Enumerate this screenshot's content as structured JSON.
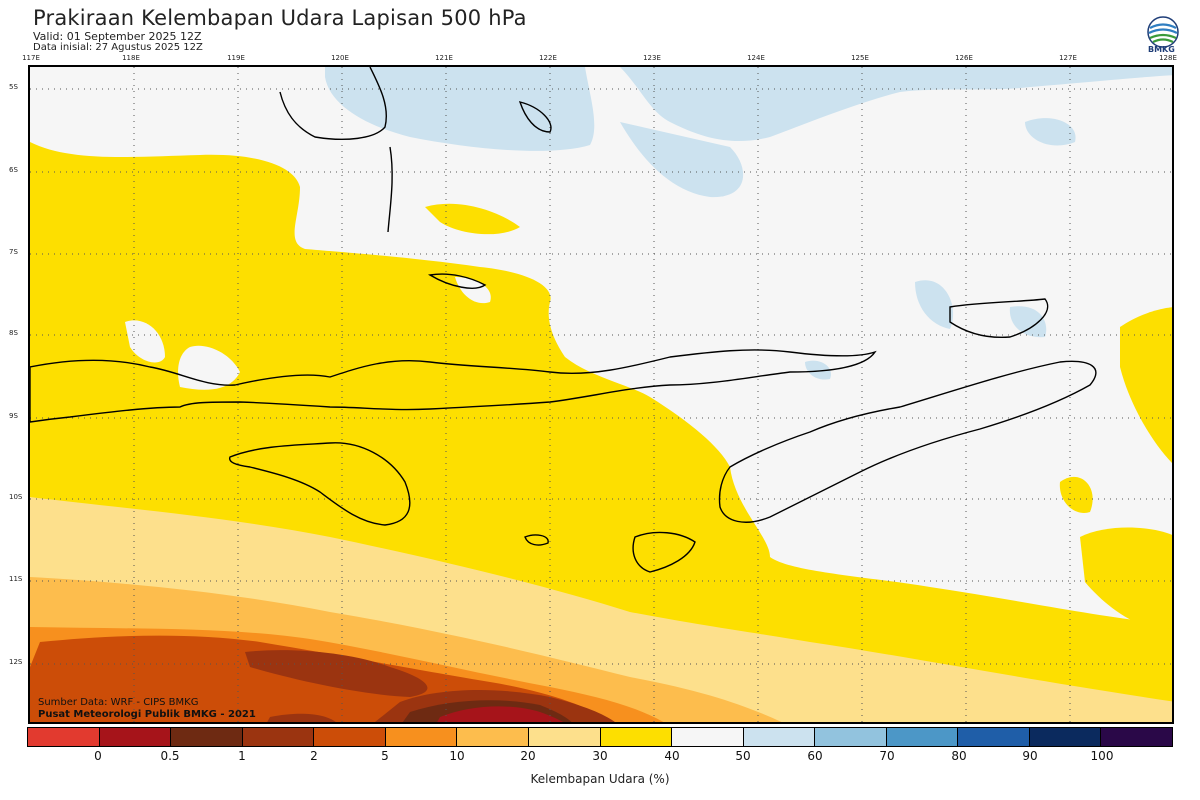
{
  "header": {
    "title": "Prakiraan Kelembapan Udara Lapisan 500 hPa",
    "valid": "Valid: 01 September 2025 12Z",
    "init": "Data inisial: 27 Agustus 2025 12Z"
  },
  "logo": {
    "icon": "bmkg-logo-icon",
    "label": "BMKG"
  },
  "map": {
    "lon_labels": [
      "117E",
      "118E",
      "119E",
      "120E",
      "121E",
      "122E",
      "123E",
      "124E",
      "125E",
      "126E",
      "127E",
      "128E"
    ],
    "lat_labels": [
      "5S",
      "6S",
      "7S",
      "8S",
      "9S",
      "10S",
      "11S",
      "12S"
    ]
  },
  "credits": {
    "source": "Sumber Data: WRF - CIPS BMKG",
    "org": "Pusat Meteorologi Publik BMKG - 2021"
  },
  "colorbar": {
    "colors": [
      "#e23a2f",
      "#a6141a",
      "#6e2a12",
      "#9b3410",
      "#cc4d08",
      "#f7901e",
      "#fdbd4d",
      "#fde08c",
      "#fddf00",
      "#f6f6f6",
      "#cce2ef",
      "#92c3de",
      "#4c97c7",
      "#1f5ea8",
      "#0b2a5e",
      "#2a0848"
    ],
    "ticks": [
      "0",
      "0.5",
      "1",
      "2",
      "5",
      "10",
      "20",
      "30",
      "40",
      "50",
      "60",
      "70",
      "80",
      "90",
      "100"
    ],
    "label": "Kelembapan Udara (%)"
  },
  "colors": {
    "below_20": "#fdbd4d",
    "range_20_30": "#fde08c",
    "range_30_40": "#fddf00",
    "range_40_50": "#f6f6f6",
    "range_50_60": "#cce2ef",
    "range_5_10": "#f7901e",
    "range_2_5": "#cc4d08",
    "range_1_2": "#9b3410",
    "range_0_5_1": "#6e2a12",
    "range_0_0_5": "#a6141a"
  }
}
